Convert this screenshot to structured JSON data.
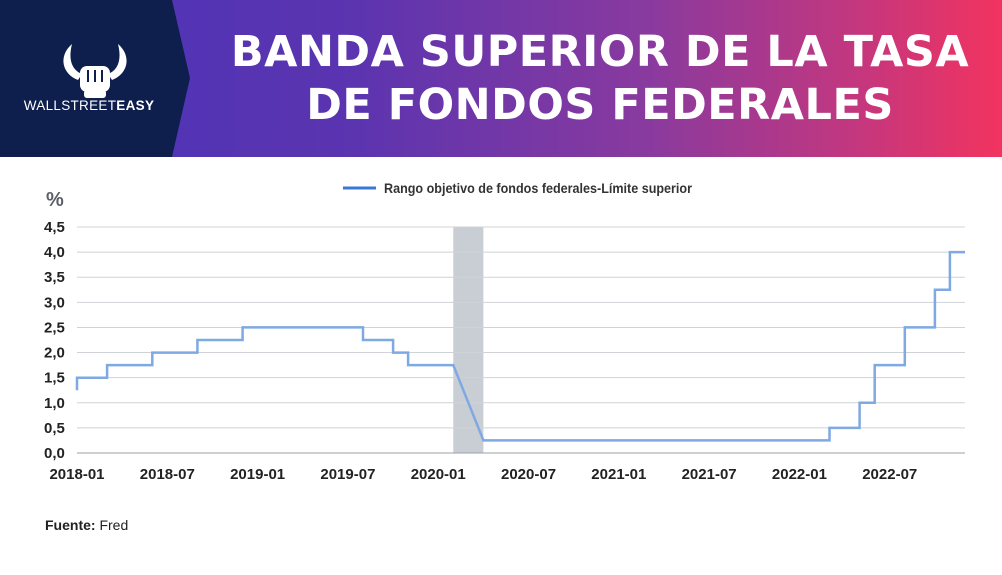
{
  "header": {
    "brand_regular": "WALLSTREET",
    "brand_bold": "EASY",
    "title_line1": "BANDA SUPERIOR DE LA TASA",
    "title_line2": "DE FONDOS FEDERALES"
  },
  "colors": {
    "line": "#7fa9e3",
    "legend_line": "#3a78d8",
    "recession": "#c9ced4",
    "logo_bg": "#0e1f4d"
  },
  "icons": {
    "logo": "bull-fist-icon"
  },
  "footer": {
    "source_label": "Fuente:",
    "source_value": "Fred"
  },
  "chart_data": {
    "type": "line",
    "step": true,
    "ylabel": "%",
    "ylim": [
      0,
      4.5
    ],
    "yticks": [
      "0,0",
      "0,5",
      "1,0",
      "1,5",
      "2,0",
      "2,5",
      "3,0",
      "3,5",
      "4,0",
      "4,5"
    ],
    "xlim": [
      "2018-01",
      "2022-12"
    ],
    "xticks": [
      "2018-01",
      "2018-07",
      "2019-01",
      "2019-07",
      "2020-01",
      "2020-07",
      "2021-01",
      "2021-07",
      "2022-01",
      "2022-07"
    ],
    "grid": "horizontal",
    "legend": {
      "position": "top-center",
      "entries": [
        "Rango objetivo de fondos federales-Límite superior"
      ]
    },
    "recession": {
      "start": "2020-02",
      "end": "2020-04"
    },
    "series": [
      {
        "name": "Rango objetivo de fondos federales-Límite superior",
        "points": [
          [
            "2018-01",
            1.25
          ],
          [
            "2018-01",
            1.5
          ],
          [
            "2018-03",
            1.5
          ],
          [
            "2018-03",
            1.75
          ],
          [
            "2018-06",
            1.75
          ],
          [
            "2018-06",
            2.0
          ],
          [
            "2018-09",
            2.0
          ],
          [
            "2018-09",
            2.25
          ],
          [
            "2018-12",
            2.25
          ],
          [
            "2018-12",
            2.5
          ],
          [
            "2019-08",
            2.5
          ],
          [
            "2019-08",
            2.25
          ],
          [
            "2019-10",
            2.25
          ],
          [
            "2019-10",
            2.0
          ],
          [
            "2019-11",
            2.0
          ],
          [
            "2019-11",
            1.75
          ],
          [
            "2020-02",
            1.75
          ],
          [
            "2020-04",
            0.25
          ],
          [
            "2022-03",
            0.25
          ],
          [
            "2022-03",
            0.5
          ],
          [
            "2022-05",
            0.5
          ],
          [
            "2022-05",
            1.0
          ],
          [
            "2022-06",
            1.0
          ],
          [
            "2022-06",
            1.75
          ],
          [
            "2022-08",
            1.75
          ],
          [
            "2022-08",
            2.5
          ],
          [
            "2022-10",
            2.5
          ],
          [
            "2022-10",
            3.25
          ],
          [
            "2022-11",
            3.25
          ],
          [
            "2022-11",
            4.0
          ],
          [
            "2022-12",
            4.0
          ]
        ]
      }
    ]
  }
}
